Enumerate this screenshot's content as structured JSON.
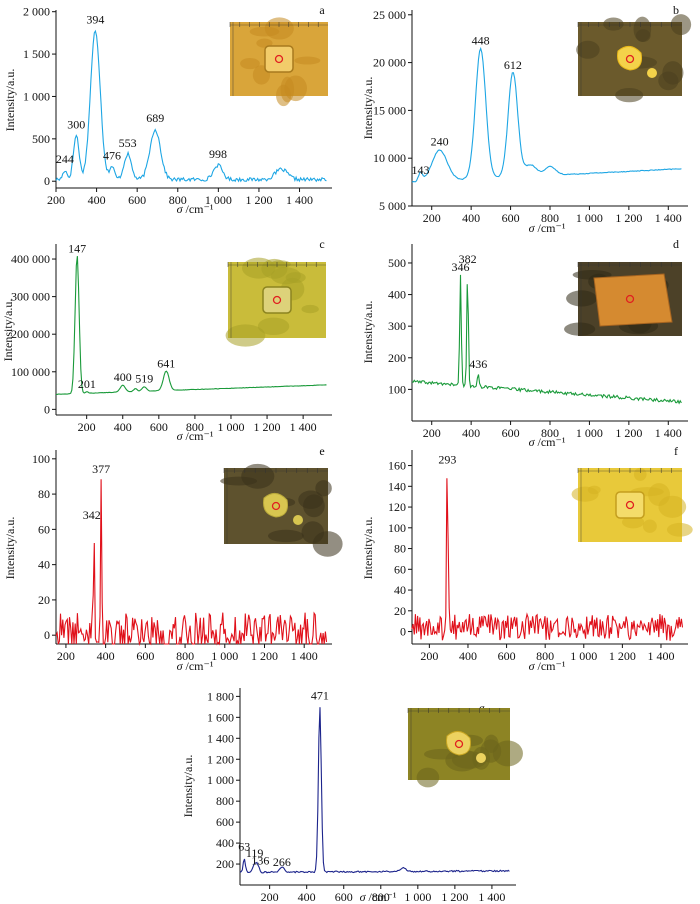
{
  "colors": {
    "blue": "#1ea6e4",
    "green": "#1a9a3a",
    "red": "#e0101a",
    "navy": "#1c248c",
    "axis": "#111111",
    "marker": "#e02020"
  },
  "chart_data": [
    {
      "panel": "a",
      "type": "line",
      "color": "blue",
      "xlabel": "σ /cm⁻¹",
      "ylabel": "Intensity/a.u.",
      "xlim": [
        200,
        1560
      ],
      "ylim": [
        -80,
        2020
      ],
      "xticks": [
        200,
        400,
        600,
        800,
        1000,
        1200,
        1400
      ],
      "xtick_labels": [
        "200",
        "400",
        "600",
        "800",
        "1 000",
        "1 200",
        "1 400"
      ],
      "yticks": [
        0,
        500,
        1000,
        1500,
        2000
      ],
      "ytick_labels": [
        "0",
        "500",
        "1 000",
        "1 500",
        "2 000"
      ],
      "baseline": 20,
      "noise": 22,
      "drift": 0,
      "peaks": [
        [
          244,
          110,
          10
        ],
        [
          300,
          520,
          14
        ],
        [
          394,
          1760,
          24
        ],
        [
          476,
          150,
          12
        ],
        [
          553,
          300,
          18
        ],
        [
          689,
          590,
          26
        ],
        [
          998,
          170,
          22
        ],
        [
          1310,
          120,
          30
        ]
      ],
      "peak_labels": [
        {
          "x": 244,
          "y": 215,
          "text": "244"
        },
        {
          "x": 300,
          "y": 620,
          "text": "300"
        },
        {
          "x": 394,
          "y": 1860,
          "text": "394"
        },
        {
          "x": 476,
          "y": 255,
          "text": "476"
        },
        {
          "x": 553,
          "y": 405,
          "text": "553"
        },
        {
          "x": 689,
          "y": 700,
          "text": "689"
        },
        {
          "x": 998,
          "y": 275,
          "text": "998"
        }
      ],
      "inset_style": "gold"
    },
    {
      "panel": "b",
      "type": "line",
      "color": "blue",
      "xlabel": "σ /cm⁻¹",
      "ylabel": "Intensity/a.u.",
      "xlim": [
        100,
        1500
      ],
      "ylim": [
        5000,
        25500
      ],
      "xticks": [
        200,
        400,
        600,
        800,
        1000,
        1200,
        1400
      ],
      "xtick_labels": [
        "200",
        "400",
        "600",
        "800",
        "1 000",
        "1 200",
        "1 400"
      ],
      "yticks": [
        5000,
        10000,
        15000,
        20000,
        25000
      ],
      "ytick_labels": [
        "5 000",
        "10 000",
        "15 000",
        "20 000",
        "25 000"
      ],
      "baseline": 7500,
      "noise": 40,
      "drift": 1400,
      "peaks": [
        [
          143,
          900,
          10
        ],
        [
          240,
          3200,
          38
        ],
        [
          448,
          13600,
          26
        ],
        [
          612,
          11000,
          24
        ],
        [
          700,
          1200,
          30
        ],
        [
          800,
          900,
          28
        ]
      ],
      "peak_labels": [
        {
          "x": 143,
          "y": 8350,
          "text": "143"
        },
        {
          "x": 240,
          "y": 11350,
          "text": "240"
        },
        {
          "x": 448,
          "y": 21900,
          "text": "448"
        },
        {
          "x": 612,
          "y": 19350,
          "text": "612"
        }
      ],
      "inset_style": "dark"
    },
    {
      "panel": "c",
      "type": "line",
      "color": "green",
      "xlabel": "σ /cm⁻¹",
      "ylabel": "Intensity/a.u.",
      "xlim": [
        30,
        1560
      ],
      "ylim": [
        -15000,
        440000
      ],
      "xticks": [
        200,
        400,
        600,
        800,
        1000,
        1200,
        1400
      ],
      "xtick_labels": [
        "200",
        "400",
        "600",
        "800",
        "1 000",
        "1 200",
        "1 400"
      ],
      "yticks": [
        0,
        100000,
        200000,
        300000,
        400000
      ],
      "ytick_labels": [
        "0",
        "100 000",
        "200 000",
        "300 000",
        "400 000"
      ],
      "baseline": 40000,
      "noise": 500,
      "drift": 25000,
      "peaks": [
        [
          147,
          370000,
          11
        ],
        [
          201,
          4000,
          8
        ],
        [
          400,
          18000,
          14
        ],
        [
          470,
          8000,
          10
        ],
        [
          519,
          12000,
          12
        ],
        [
          641,
          52000,
          16
        ]
      ],
      "peak_labels": [
        {
          "x": 147,
          "y": 418000,
          "text": "147"
        },
        {
          "x": 201,
          "y": 57000,
          "text": "201"
        },
        {
          "x": 400,
          "y": 76000,
          "text": "400"
        },
        {
          "x": 519,
          "y": 72000,
          "text": "519"
        },
        {
          "x": 641,
          "y": 112000,
          "text": "641"
        }
      ],
      "inset_style": "yellow"
    },
    {
      "panel": "d",
      "type": "line",
      "color": "green",
      "xlabel": "σ /cm⁻¹",
      "ylabel": "Intensity/a.u.",
      "xlim": [
        100,
        1500
      ],
      "ylim": [
        0,
        560
      ],
      "xticks": [
        200,
        400,
        600,
        800,
        1000,
        1200,
        1400
      ],
      "xtick_labels": [
        "200",
        "400",
        "600",
        "800",
        "1 000",
        "1 200",
        "1 400"
      ],
      "yticks": [
        100,
        200,
        300,
        400,
        500
      ],
      "ytick_labels": [
        "100",
        "200",
        "300",
        "400",
        "500"
      ],
      "baseline": 125,
      "noise": 5,
      "drift": -65,
      "peaks": [
        [
          346,
          345,
          4
        ],
        [
          382,
          355,
          4
        ],
        [
          436,
          35,
          5
        ]
      ],
      "peak_labels": [
        {
          "x": 346,
          "y": 475,
          "text": "346"
        },
        {
          "x": 382,
          "y": 500,
          "text": "382"
        },
        {
          "x": 436,
          "y": 168,
          "text": "436"
        }
      ],
      "inset_style": "orange"
    },
    {
      "panel": "e",
      "type": "line",
      "color": "red",
      "xlabel": "σ /cm⁻¹",
      "ylabel": "Intensity/a.u.",
      "xlim": [
        150,
        1540
      ],
      "ylim": [
        -5,
        105
      ],
      "xticks": [
        200,
        400,
        600,
        800,
        1000,
        1200,
        1400
      ],
      "xtick_labels": [
        "200",
        "400",
        "600",
        "800",
        "1 000",
        "1 200",
        "1 400"
      ],
      "yticks": [
        0,
        20,
        40,
        60,
        80,
        100
      ],
      "ytick_labels": [
        "0",
        "20",
        "40",
        "60",
        "80",
        "100"
      ],
      "baseline": 2,
      "noise": 11,
      "drift": 0,
      "peaks": [
        [
          342,
          58,
          3
        ],
        [
          377,
          84,
          3
        ]
      ],
      "peak_labels": [
        {
          "x": 330,
          "y": 66,
          "text": "342"
        },
        {
          "x": 377,
          "y": 92,
          "text": "377"
        }
      ],
      "inset_style": "darkyellow"
    },
    {
      "panel": "f",
      "type": "line",
      "color": "red",
      "xlabel": "σ /cm⁻¹",
      "ylabel": "Intensity/a.u.",
      "xlim": [
        110,
        1540
      ],
      "ylim": [
        -12,
        175
      ],
      "xticks": [
        200,
        400,
        600,
        800,
        1000,
        1200,
        1400
      ],
      "xtick_labels": [
        "200",
        "400",
        "600",
        "800",
        "1 000",
        "1 200",
        "1 400"
      ],
      "yticks": [
        0,
        20,
        40,
        60,
        80,
        100,
        120,
        140,
        160
      ],
      "ytick_labels": [
        "0",
        "20",
        "40",
        "60",
        "80",
        "100",
        "120",
        "140",
        "160"
      ],
      "baseline": 4,
      "noise": 13,
      "drift": 0,
      "peaks": [
        [
          293,
          148,
          4
        ]
      ],
      "peak_labels": [
        {
          "x": 293,
          "y": 162,
          "text": "293"
        }
      ],
      "inset_style": "brightyellow"
    },
    {
      "panel": "g",
      "type": "line",
      "color": "navy",
      "xlabel": "σ /cm⁻¹",
      "ylabel": "Intensity/a.u.",
      "xlim": [
        40,
        1530
      ],
      "ylim": [
        0,
        1880
      ],
      "xticks": [
        200,
        400,
        600,
        800,
        1000,
        1200,
        1400
      ],
      "xtick_labels": [
        "200",
        "400",
        "600",
        "800",
        "1 000",
        "1 200",
        "1 400"
      ],
      "yticks": [
        200,
        400,
        600,
        800,
        1000,
        1200,
        1400,
        1600,
        1800
      ],
      "ytick_labels": [
        "200",
        "400",
        "600",
        "800",
        "1 000",
        "1 200",
        "1 400",
        "1 600",
        "1 800"
      ],
      "baseline": 120,
      "noise": 7,
      "drift": 15,
      "peaks": [
        [
          63,
          130,
          6
        ],
        [
          119,
          80,
          10
        ],
        [
          136,
          60,
          8
        ],
        [
          266,
          50,
          12
        ],
        [
          471,
          1580,
          8
        ],
        [
          920,
          35,
          15
        ]
      ],
      "peak_labels": [
        {
          "x": 63,
          "y": 330,
          "text": "63"
        },
        {
          "x": 119,
          "y": 265,
          "text": "119"
        },
        {
          "x": 150,
          "y": 195,
          "text": "136"
        },
        {
          "x": 266,
          "y": 180,
          "text": "266"
        },
        {
          "x": 471,
          "y": 1770,
          "text": "471"
        }
      ],
      "inset_style": "olive"
    }
  ]
}
